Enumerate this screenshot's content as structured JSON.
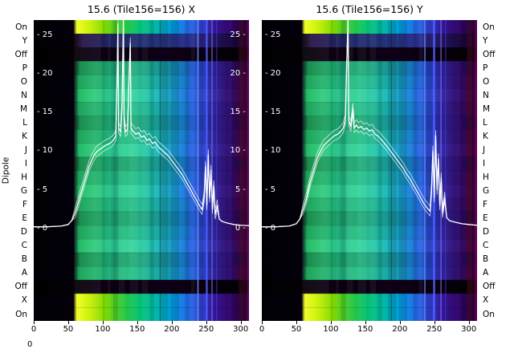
{
  "figure": {
    "titles": [
      "15.6 (Tile156=156) X",
      "15.6 (Tile156=156) Y"
    ],
    "y_axis_label": "Dipole",
    "row_labels": [
      "On",
      "Y",
      "Off",
      "P",
      "O",
      "N",
      "M",
      "L",
      "K",
      "J",
      "I",
      "H",
      "G",
      "F",
      "E",
      "D",
      "C",
      "B",
      "A",
      "Off",
      "X",
      "On"
    ],
    "corner_label": "0"
  },
  "heatmap_style": {
    "background": "#000000",
    "line_color": "#ffffff",
    "row_archetypes": [
      "bright",
      "dim",
      "off",
      "mid2",
      "mid1",
      "mid3",
      "mid1",
      "mid2",
      "mid1",
      "mid3",
      "mid2",
      "mid1",
      "mid3",
      "mid1",
      "mid2",
      "mid1",
      "mid3",
      "mid2",
      "mid1",
      "off",
      "bright",
      "bright"
    ],
    "archetypes": {
      "bright": [
        [
          0,
          "#000005"
        ],
        [
          0.185,
          "#05000a"
        ],
        [
          0.2,
          "#f0ff20"
        ],
        [
          0.26,
          "#c8f000"
        ],
        [
          0.33,
          "#7fd800"
        ],
        [
          0.41,
          "#2fc838"
        ],
        [
          0.49,
          "#00c070"
        ],
        [
          0.57,
          "#00b8a8"
        ],
        [
          0.64,
          "#00a0e0"
        ],
        [
          0.71,
          "#2070e8"
        ],
        [
          0.78,
          "#3040d0"
        ],
        [
          0.84,
          "#3c18a8"
        ],
        [
          0.9,
          "#380a7c"
        ],
        [
          0.95,
          "#2a0352"
        ],
        [
          1,
          "#14002a"
        ]
      ],
      "dim": [
        [
          0,
          "#000004"
        ],
        [
          0.19,
          "#060008"
        ],
        [
          0.23,
          "#2a1448"
        ],
        [
          0.32,
          "#222058"
        ],
        [
          0.42,
          "#1e2868"
        ],
        [
          0.52,
          "#223070"
        ],
        [
          0.62,
          "#263680"
        ],
        [
          0.72,
          "#2a3090"
        ],
        [
          0.8,
          "#282078"
        ],
        [
          0.88,
          "#221054"
        ],
        [
          0.94,
          "#1a0638"
        ],
        [
          1,
          "#0c0018"
        ]
      ],
      "off": [
        [
          0,
          "#000000"
        ],
        [
          0.19,
          "#040006"
        ],
        [
          0.3,
          "#0e0014"
        ],
        [
          0.45,
          "#0a0010"
        ],
        [
          0.6,
          "#100018"
        ],
        [
          0.75,
          "#0b0012"
        ],
        [
          0.9,
          "#060009"
        ],
        [
          1,
          "#000000"
        ]
      ],
      "mid1": [
        [
          0,
          "#000004"
        ],
        [
          0.185,
          "#03000a"
        ],
        [
          0.21,
          "#12a052"
        ],
        [
          0.28,
          "#24b46c"
        ],
        [
          0.36,
          "#1caa78"
        ],
        [
          0.44,
          "#2ec288"
        ],
        [
          0.52,
          "#20b694"
        ],
        [
          0.6,
          "#16a6ac"
        ],
        [
          0.67,
          "#168cc6"
        ],
        [
          0.74,
          "#2260d8"
        ],
        [
          0.8,
          "#2c38c2"
        ],
        [
          0.86,
          "#38209a"
        ],
        [
          0.92,
          "#300c6a"
        ],
        [
          0.965,
          "#3e0348"
        ],
        [
          1,
          "#1c002a"
        ]
      ],
      "mid2": [
        [
          0,
          "#000004"
        ],
        [
          0.185,
          "#03000a"
        ],
        [
          0.215,
          "#0e8846"
        ],
        [
          0.29,
          "#1ea05e"
        ],
        [
          0.37,
          "#18986a"
        ],
        [
          0.45,
          "#28ae78"
        ],
        [
          0.53,
          "#1ca286"
        ],
        [
          0.61,
          "#14929a"
        ],
        [
          0.68,
          "#147ab6"
        ],
        [
          0.75,
          "#2050ca"
        ],
        [
          0.81,
          "#2a2eb2"
        ],
        [
          0.87,
          "#341c8e"
        ],
        [
          0.93,
          "#2c0a62"
        ],
        [
          1,
          "#180026"
        ]
      ],
      "mid3": [
        [
          0,
          "#000004"
        ],
        [
          0.185,
          "#03000a"
        ],
        [
          0.21,
          "#18b860"
        ],
        [
          0.28,
          "#32cc7c"
        ],
        [
          0.36,
          "#26c08c"
        ],
        [
          0.44,
          "#3ad69c"
        ],
        [
          0.52,
          "#2ac8a8"
        ],
        [
          0.59,
          "#1eb8c0"
        ],
        [
          0.66,
          "#1c9ad8"
        ],
        [
          0.73,
          "#2c68e6"
        ],
        [
          0.8,
          "#3444ce"
        ],
        [
          0.86,
          "#4026a6"
        ],
        [
          0.92,
          "#361072"
        ],
        [
          0.965,
          "#440450"
        ],
        [
          1,
          "#220030"
        ]
      ]
    }
  },
  "chart_data": [
    {
      "type": "heatmap",
      "title": "15.6 (Tile156=156) X",
      "x_range": [
        0,
        312
      ],
      "x_ticks": [
        0,
        50,
        100,
        150,
        200,
        250,
        300
      ],
      "rows_axis_label": "Dipole",
      "value_axis": {
        "vmin": -12,
        "vmax": 27,
        "ticks": [
          25,
          20,
          15,
          10,
          5,
          0
        ],
        "mirror_right": true
      },
      "stripes": [
        {
          "f": 0.585,
          "w": 0.004,
          "c": "rgba(8,8,60,0.4)"
        },
        {
          "f": 0.76,
          "w": 0.006,
          "c": "rgba(110,150,255,0.85)"
        },
        {
          "f": 0.8,
          "w": 0.008,
          "c": "rgba(80,100,255,0.9)"
        },
        {
          "f": 0.826,
          "w": 0.005,
          "c": "rgba(140,110,255,0.75)"
        },
        {
          "f": 0.848,
          "w": 0.004,
          "c": "rgba(70,60,230,0.7)"
        },
        {
          "f": 0.95,
          "w": 0.038,
          "c": "rgba(60,0,25,0.5)"
        },
        {
          "f": 0.988,
          "w": 0.012,
          "c": "rgba(170,0,150,0.4)"
        }
      ],
      "line": {
        "x": [
          0,
          20,
          40,
          50,
          55,
          60,
          65,
          70,
          75,
          80,
          85,
          90,
          95,
          100,
          105,
          110,
          113,
          116,
          119,
          121,
          122,
          123,
          126,
          128,
          130,
          131,
          133,
          136,
          138,
          140,
          141,
          144,
          148,
          152,
          156,
          160,
          164,
          168,
          172,
          176,
          180,
          185,
          190,
          195,
          200,
          205,
          210,
          215,
          220,
          225,
          230,
          235,
          240,
          244,
          247,
          249,
          251,
          253,
          255,
          257,
          259,
          261,
          263,
          266,
          269,
          273,
          280,
          290,
          300,
          312
        ],
        "v": [
          0.2,
          0.2,
          0.3,
          0.5,
          1,
          2,
          3.5,
          5,
          6.5,
          8,
          9,
          9.8,
          10.2,
          10.5,
          10.8,
          11,
          11.2,
          11.5,
          12,
          20,
          26.5,
          13,
          12.5,
          16,
          27,
          14,
          12.5,
          12.8,
          19,
          24,
          13,
          12.6,
          12.2,
          12.4,
          11.8,
          12,
          11.4,
          11.6,
          11,
          11.2,
          10.6,
          10.2,
          9.8,
          9.4,
          8.8,
          8.2,
          7.6,
          7,
          6.2,
          5.4,
          4.6,
          3.8,
          3,
          2.4,
          4,
          8,
          3,
          9.5,
          4,
          7.5,
          2.5,
          5.5,
          1.8,
          3,
          1.2,
          0.9,
          0.7,
          0.5,
          0.4,
          0.35
        ]
      },
      "line_strand_offsets": [
        0,
        -0.6,
        0.7
      ]
    },
    {
      "type": "heatmap",
      "title": "15.6 (Tile156=156) Y",
      "x_range": [
        0,
        312
      ],
      "x_ticks": [
        0,
        50,
        100,
        150,
        200,
        250,
        300
      ],
      "rows_axis_label": "Dipole",
      "value_axis": {
        "vmin": -12,
        "vmax": 27,
        "ticks": [
          25,
          20,
          15,
          10,
          5,
          0
        ],
        "mirror_right": false
      },
      "stripes": [
        {
          "f": 0.6,
          "w": 0.004,
          "c": "rgba(8,8,60,0.4)"
        },
        {
          "f": 0.755,
          "w": 0.005,
          "c": "rgba(110,150,255,0.85)"
        },
        {
          "f": 0.796,
          "w": 0.009,
          "c": "rgba(80,100,255,0.9)"
        },
        {
          "f": 0.83,
          "w": 0.005,
          "c": "rgba(140,110,255,0.75)"
        },
        {
          "f": 0.852,
          "w": 0.004,
          "c": "rgba(70,60,230,0.7)"
        },
        {
          "f": 0.952,
          "w": 0.036,
          "c": "rgba(60,0,25,0.5)"
        },
        {
          "f": 0.988,
          "w": 0.012,
          "c": "rgba(170,0,150,0.4)"
        }
      ],
      "line": {
        "x": [
          0,
          20,
          40,
          50,
          55,
          60,
          65,
          70,
          75,
          80,
          85,
          90,
          95,
          100,
          105,
          110,
          114,
          118,
          121,
          123,
          125,
          126,
          129,
          132,
          134,
          137,
          140,
          144,
          148,
          152,
          156,
          160,
          164,
          168,
          172,
          176,
          180,
          185,
          190,
          195,
          200,
          205,
          210,
          215,
          220,
          225,
          230,
          235,
          240,
          244,
          246,
          248,
          250,
          252,
          254,
          256,
          258,
          260,
          262,
          265,
          268,
          272,
          280,
          290,
          300,
          312
        ],
        "v": [
          0.2,
          0.2,
          0.3,
          0.6,
          1.2,
          2.5,
          4,
          6,
          7.5,
          9,
          10,
          10.8,
          11.2,
          11.6,
          12,
          12.2,
          12.5,
          13,
          14,
          21,
          27,
          14,
          13.2,
          15.5,
          13,
          13.4,
          13,
          13.2,
          12.8,
          13,
          12.6,
          12.8,
          12.2,
          12,
          11.6,
          11.2,
          10.8,
          10.2,
          9.6,
          9,
          8.4,
          7.8,
          7,
          6.4,
          5.6,
          4.8,
          4,
          3.2,
          2.6,
          2.2,
          5,
          10,
          4,
          12,
          5,
          9,
          3,
          6.5,
          2,
          4,
          1.4,
          1,
          0.8,
          0.6,
          0.5,
          0.4
        ]
      },
      "line_strand_offsets": [
        0,
        -0.6,
        0.7
      ]
    }
  ]
}
